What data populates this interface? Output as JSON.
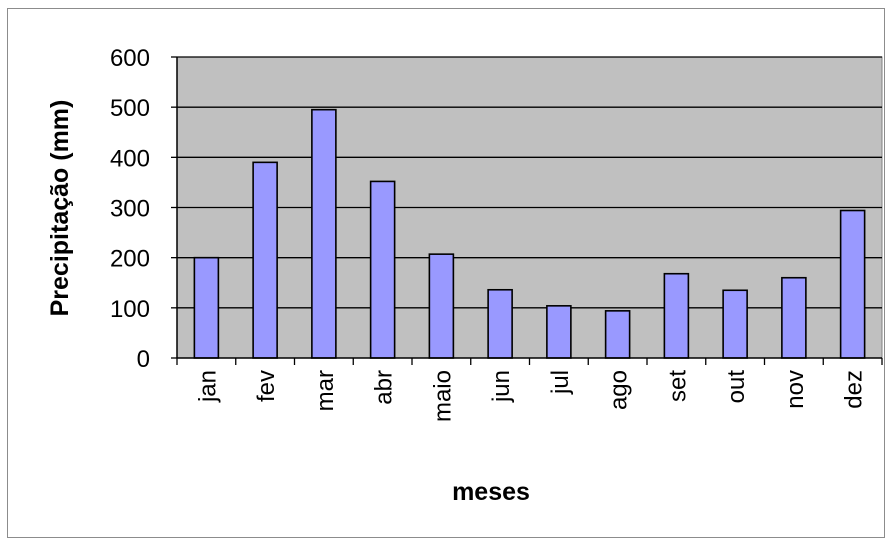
{
  "chart_data": {
    "type": "bar",
    "title": "",
    "xlabel": "meses",
    "ylabel": "Precipitação (mm)",
    "ylim": [
      0,
      600
    ],
    "yticks": [
      0,
      100,
      200,
      300,
      400,
      500,
      600
    ],
    "categories": [
      "jan",
      "fev",
      "mar",
      "abr",
      "maio",
      "jun",
      "jul",
      "ago",
      "set",
      "out",
      "nov",
      "dez"
    ],
    "values": [
      200,
      390,
      495,
      352,
      207,
      136,
      104,
      94,
      168,
      135,
      160,
      294
    ],
    "grid": true,
    "legend": "none"
  },
  "colors": {
    "plot_background": "#c0c0c0",
    "bar_fill": "#9999ff",
    "bar_stroke": "#000000",
    "gridline": "#000000"
  }
}
